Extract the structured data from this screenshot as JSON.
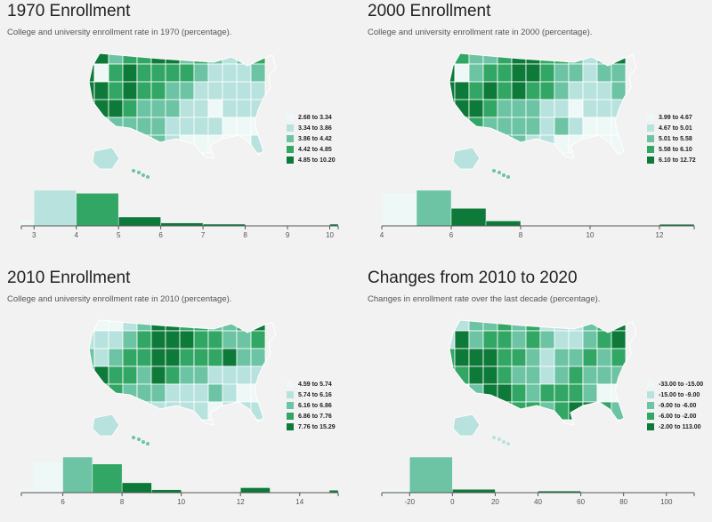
{
  "colors": [
    "#eef8f6",
    "#b7e2de",
    "#6cc4a4",
    "#32a765",
    "#0d7a3a"
  ],
  "chart_data": [
    {
      "type": "choropleth-histogram",
      "title": "1970 Enrollment",
      "subtitle": "College and university enrollment rate in 1970 (percentage).",
      "legend": [
        "2.68 to 3.34",
        "3.34 to 3.86",
        "3.86 to 4.42",
        "4.42 to 4.85",
        "4.85 to 10.20"
      ],
      "xlim": [
        2.7,
        10.2
      ],
      "ticks": [
        3,
        4,
        5,
        6,
        7,
        8,
        9,
        10
      ],
      "bins": [
        {
          "x0": 2.7,
          "x1": 3,
          "count": 1,
          "color": 0
        },
        {
          "x0": 3,
          "x1": 4,
          "count": 6,
          "color": 1
        },
        {
          "x0": 4,
          "x1": 5,
          "count": 5.5,
          "color": 3
        },
        {
          "x0": 5,
          "x1": 6,
          "count": 1.5,
          "color": 4
        },
        {
          "x0": 6,
          "x1": 7,
          "count": 0.5,
          "color": 4
        },
        {
          "x0": 7,
          "x1": 8,
          "count": 0.3,
          "color": 4
        },
        {
          "x0": 10,
          "x1": 10.2,
          "count": 0.3,
          "color": 4
        }
      ]
    },
    {
      "type": "choropleth-histogram",
      "title": "2000 Enrollment",
      "subtitle": "College and university enrollment rate in 2000 (percentage).",
      "legend": [
        "3.99 to 4.67",
        "4.67 to 5.01",
        "5.01 to 5.58",
        "5.58 to 6.10",
        "6.10 to 12.72"
      ],
      "xlim": [
        4,
        13
      ],
      "ticks": [
        4,
        6,
        8,
        10,
        12
      ],
      "bins": [
        {
          "x0": 4,
          "x1": 5,
          "count": 6,
          "color": 0
        },
        {
          "x0": 5,
          "x1": 6,
          "count": 6.5,
          "color": 2
        },
        {
          "x0": 6,
          "x1": 7,
          "count": 3.2,
          "color": 4
        },
        {
          "x0": 7,
          "x1": 8,
          "count": 0.9,
          "color": 4
        },
        {
          "x0": 12,
          "x1": 13,
          "count": 0.3,
          "color": 4
        }
      ]
    },
    {
      "type": "choropleth-histogram",
      "title": "2010 Enrollment",
      "subtitle": "College and university enrollment rate in 2010 (percentage).",
      "legend": [
        "4.59 to 5.74",
        "5.74 to 6.16",
        "6.16 to 6.86",
        "6.86 to 7.76",
        "7.76 to 15.29"
      ],
      "xlim": [
        4.6,
        15.3
      ],
      "ticks": [
        6,
        8,
        10,
        12,
        14
      ],
      "bins": [
        {
          "x0": 4.6,
          "x1": 5,
          "count": 0.8,
          "color": 0
        },
        {
          "x0": 5,
          "x1": 6,
          "count": 6.3,
          "color": 0
        },
        {
          "x0": 6,
          "x1": 7,
          "count": 7.2,
          "color": 2
        },
        {
          "x0": 7,
          "x1": 8,
          "count": 5.8,
          "color": 3
        },
        {
          "x0": 8,
          "x1": 9,
          "count": 2.0,
          "color": 4
        },
        {
          "x0": 9,
          "x1": 10,
          "count": 0.6,
          "color": 4
        },
        {
          "x0": 12,
          "x1": 13,
          "count": 1.0,
          "color": 4
        },
        {
          "x0": 15,
          "x1": 15.3,
          "count": 0.5,
          "color": 4
        }
      ]
    },
    {
      "type": "choropleth-histogram",
      "title": "Changes from 2010 to 2020",
      "subtitle": "Changes in enrollment rate over the last decade (percentage).",
      "legend": [
        "-33.00 to -15.00",
        "-15.00 to -9.00",
        "-9.00 to -6.00",
        "-6.00 to -2.00",
        "-2.00 to 113.00"
      ],
      "xlim": [
        -33,
        113
      ],
      "ticks": [
        -20,
        0,
        20,
        40,
        60,
        80,
        100
      ],
      "bins": [
        {
          "x0": -33,
          "x1": -20,
          "count": 0.8,
          "color": 0
        },
        {
          "x0": -20,
          "x1": 0,
          "count": 8.5,
          "color": 2
        },
        {
          "x0": 0,
          "x1": 20,
          "count": 0.8,
          "color": 4
        },
        {
          "x0": 40,
          "x1": 60,
          "count": 0.4,
          "color": 4
        },
        {
          "x0": 100,
          "x1": 113,
          "count": 0.3,
          "color": 0
        }
      ]
    }
  ]
}
